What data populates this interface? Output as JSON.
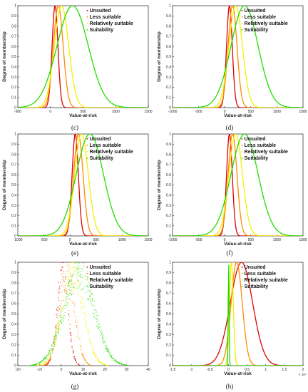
{
  "series_colors": {
    "Unsuited": "#e00000",
    "Less suitable": "#ff8c00",
    "Relatively suitable": "#f2f200",
    "Suitability": "#22dd00"
  },
  "chart_data": [
    {
      "caption": "(c)",
      "type": "line",
      "xlabel": "Value-at-risk",
      "ylabel": "Degree of membership",
      "xlim": [
        -500,
        1500
      ],
      "ylim": [
        0,
        1
      ],
      "xticks": [
        "-500",
        "0",
        "500",
        "1000",
        "1500"
      ],
      "x_multiplier": "",
      "yticks": [
        "0",
        "0.1",
        "0.2",
        "0.3",
        "0.4",
        "0.5",
        "0.6",
        "0.7",
        "0.8",
        "0.9",
        "1"
      ],
      "legend": [
        "Unsuited",
        "Less suitable",
        "Relatively suitable",
        "Suitability"
      ],
      "series": [
        {
          "name": "Unsuited",
          "mean": 70,
          "sd": 45
        },
        {
          "name": "Less suitable",
          "mean": 120,
          "sd": 75
        },
        {
          "name": "Relatively suitable",
          "mean": 170,
          "sd": 110
        },
        {
          "name": "Suitability",
          "mean": 340,
          "sd": 240
        }
      ]
    },
    {
      "caption": "(d)",
      "type": "line",
      "xlabel": "Value-at-risk",
      "ylabel": "Degree of membership",
      "xlim": [
        -1000,
        1500
      ],
      "ylim": [
        0,
        1
      ],
      "xticks": [
        "-1000",
        "-500",
        "0",
        "500",
        "1000",
        "1500"
      ],
      "x_multiplier": "",
      "yticks": [
        "0",
        "0.1",
        "0.2",
        "0.3",
        "0.4",
        "0.5",
        "0.6",
        "0.7",
        "0.8",
        "0.9",
        "1"
      ],
      "legend": [
        "Unsuited",
        "Less suitable",
        "Relatively suitable",
        "Suitability"
      ],
      "series": [
        {
          "name": "Unsuited",
          "mean": 90,
          "sd": 55
        },
        {
          "name": "Less suitable",
          "mean": 150,
          "sd": 85
        },
        {
          "name": "Relatively suitable",
          "mean": 210,
          "sd": 130
        },
        {
          "name": "Suitability",
          "mean": 380,
          "sd": 260
        }
      ]
    },
    {
      "caption": "(e)",
      "type": "line",
      "xlabel": "Value-at-risk",
      "ylabel": "Degree of membership",
      "xlim": [
        -1000,
        1500
      ],
      "ylim": [
        0,
        1
      ],
      "xticks": [
        "-1000",
        "-500",
        "0",
        "500",
        "1000",
        "1500"
      ],
      "x_multiplier": "",
      "yticks": [
        "0",
        "0.1",
        "0.2",
        "0.3",
        "0.4",
        "0.5",
        "0.6",
        "0.7",
        "0.8",
        "0.9",
        "1"
      ],
      "legend": [
        "Unsuited",
        "Less suitable",
        "Relatively suitable",
        "Suitability"
      ],
      "series": [
        {
          "name": "Unsuited",
          "mean": 100,
          "sd": 60
        },
        {
          "name": "Less suitable",
          "mean": 160,
          "sd": 90
        },
        {
          "name": "Relatively suitable",
          "mean": 220,
          "sd": 130
        },
        {
          "name": "Suitability",
          "mean": 380,
          "sd": 260
        }
      ]
    },
    {
      "caption": "(f)",
      "type": "line",
      "xlabel": "Value-at-risk",
      "ylabel": "Degree of membership",
      "xlim": [
        -1000,
        1500
      ],
      "ylim": [
        0,
        1
      ],
      "xticks": [
        "-1000",
        "-500",
        "0",
        "500",
        "1000",
        "1500"
      ],
      "x_multiplier": "",
      "yticks": [
        "0",
        "0.1",
        "0.2",
        "0.3",
        "0.4",
        "0.5",
        "0.6",
        "0.7",
        "0.8",
        "0.9",
        "1"
      ],
      "legend": [
        "Unsuited",
        "Less suitable",
        "Relatively suitable",
        "Suitability"
      ],
      "series": [
        {
          "name": "Unsuited",
          "mean": 90,
          "sd": 55
        },
        {
          "name": "Less suitable",
          "mean": 150,
          "sd": 85
        },
        {
          "name": "Relatively suitable",
          "mean": 210,
          "sd": 130
        },
        {
          "name": "Suitability",
          "mean": 380,
          "sd": 260
        }
      ]
    },
    {
      "caption": "(g)",
      "type": "scatter",
      "xlabel": "Value-at-risk",
      "ylabel": "Degree of membership",
      "xlim": [
        -20,
        40
      ],
      "ylim": [
        0,
        1
      ],
      "xticks": [
        "-20",
        "-10",
        "0",
        "10",
        "20",
        "30",
        "40"
      ],
      "x_multiplier": "",
      "yticks": [
        "0",
        "0.1",
        "0.2",
        "0.3",
        "0.4",
        "0.5",
        "0.6",
        "0.7",
        "0.8",
        "0.9",
        "1"
      ],
      "legend": [
        "Unsuited",
        "Less suitable",
        "Relatively suitable",
        "Suitability"
      ],
      "series": [
        {
          "name": "Unsuited",
          "mean": 0.5,
          "sd": 2.5
        },
        {
          "name": "Less suitable",
          "mean": 2.5,
          "sd": 3.5
        },
        {
          "name": "Relatively suitable",
          "mean": 5,
          "sd": 5
        },
        {
          "name": "Suitability",
          "mean": 8,
          "sd": 7
        }
      ]
    },
    {
      "caption": "(h)",
      "type": "line",
      "xlabel": "Value-at-risk",
      "ylabel": "Degree of membership",
      "xlim": [
        -1.5,
        2
      ],
      "ylim": [
        0,
        1
      ],
      "xticks": [
        "-1.5",
        "-1",
        "-0.5",
        "0",
        "0.5",
        "1",
        "1.5",
        "2"
      ],
      "x_multiplier": "× 10⁴",
      "yticks": [
        "0",
        "0.1",
        "0.2",
        "0.3",
        "0.4",
        "0.5",
        "0.6",
        "0.7",
        "0.8",
        "0.9",
        "1"
      ],
      "legend": [
        "Unsuited",
        "Less suitable",
        "Relatively suitable",
        "Suitability"
      ],
      "series": [
        {
          "name": "Unsuited",
          "mean": 0.35,
          "sd": 0.3
        },
        {
          "name": "Less suitable",
          "mean": 0.22,
          "sd": 0.15
        },
        {
          "name": "Relatively suitable",
          "mean": 0.08,
          "sd": 0.05
        },
        {
          "name": "Suitability",
          "mean": 0.005,
          "sd": 0.012
        }
      ]
    }
  ]
}
